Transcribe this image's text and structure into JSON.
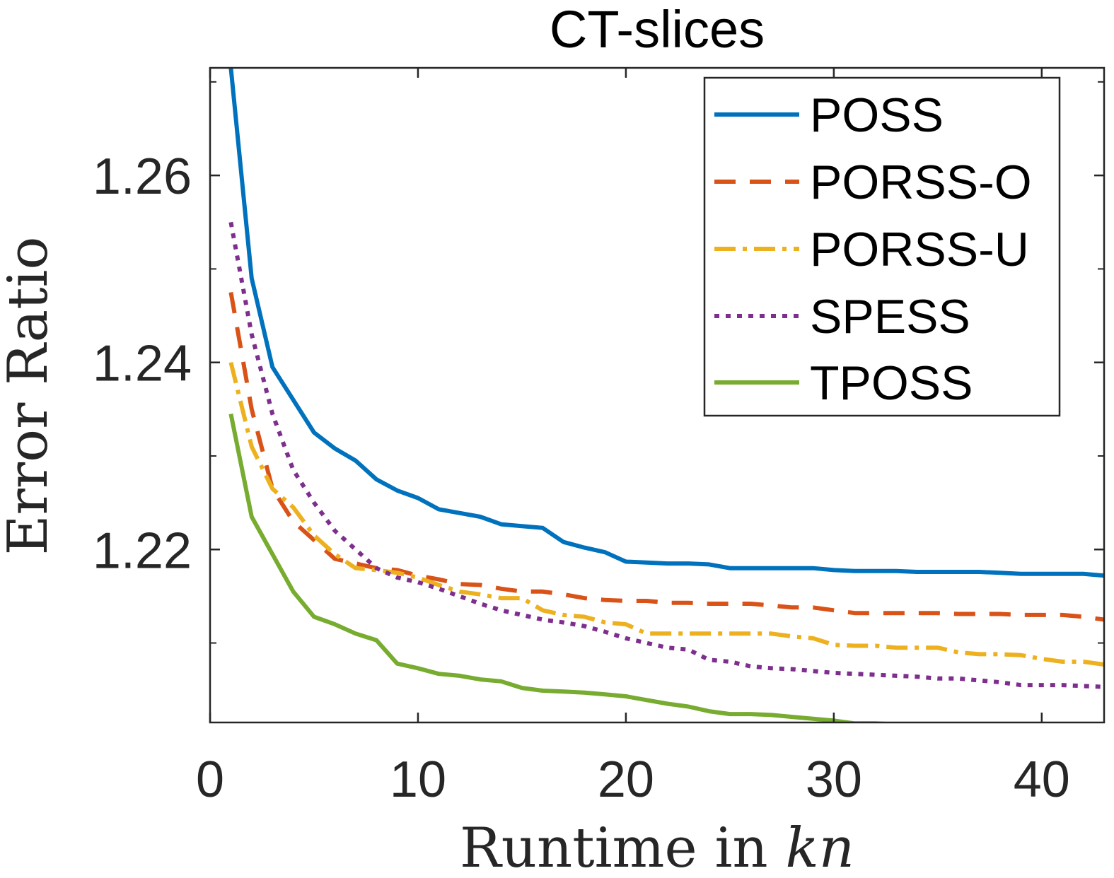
{
  "chart_data": {
    "type": "line",
    "title": "CT-slices",
    "xlabel_main": "Runtime in ",
    "xlabel_var": "kn",
    "ylabel": "Error Ratio",
    "xlim": [
      0,
      43
    ],
    "ylim": [
      1.2015,
      1.2715
    ],
    "xticks": [
      0,
      10,
      20,
      30,
      40
    ],
    "xtick_labels": [
      "0",
      "10",
      "20",
      "30",
      "40"
    ],
    "yticks": [
      1.22,
      1.24,
      1.26
    ],
    "ytick_labels": [
      "1.22",
      "1.24",
      "1.26"
    ],
    "legend_position": "top-right",
    "grid": false,
    "series": [
      {
        "name": "POSS",
        "color": "#0072BD",
        "style": "solid",
        "x": [
          1,
          2,
          3,
          4,
          5,
          6,
          7,
          8,
          9,
          10,
          11,
          12,
          13,
          14,
          15,
          16,
          17,
          18,
          19,
          20,
          21,
          22,
          23,
          24,
          25,
          26,
          27,
          28,
          29,
          30,
          31,
          32,
          33,
          34,
          35,
          36,
          37,
          38,
          39,
          40,
          41,
          42,
          43
        ],
        "y": [
          1.2715,
          1.249,
          1.2395,
          1.236,
          1.2325,
          1.2308,
          1.2295,
          1.2275,
          1.2263,
          1.2255,
          1.2243,
          1.2239,
          1.2235,
          1.2227,
          1.2225,
          1.2223,
          1.2208,
          1.2202,
          1.2197,
          1.2187,
          1.2186,
          1.2185,
          1.2185,
          1.2184,
          1.218,
          1.218,
          1.218,
          1.218,
          1.218,
          1.2178,
          1.2177,
          1.2177,
          1.2177,
          1.2176,
          1.2176,
          1.2176,
          1.2176,
          1.2175,
          1.2174,
          1.2174,
          1.2174,
          1.2174,
          1.2172
        ]
      },
      {
        "name": "PORSS-O",
        "color": "#D95319",
        "style": "dashed",
        "x": [
          1,
          2,
          3,
          4,
          5,
          6,
          7,
          8,
          9,
          10,
          11,
          12,
          13,
          14,
          15,
          16,
          17,
          18,
          19,
          20,
          21,
          22,
          23,
          24,
          25,
          26,
          27,
          28,
          29,
          30,
          31,
          32,
          33,
          34,
          35,
          36,
          37,
          38,
          39,
          40,
          41,
          42,
          43
        ],
        "y": [
          1.2475,
          1.235,
          1.2265,
          1.223,
          1.221,
          1.219,
          1.2185,
          1.218,
          1.2178,
          1.2172,
          1.2168,
          1.2163,
          1.2162,
          1.2158,
          1.2155,
          1.2155,
          1.2152,
          1.2148,
          1.2146,
          1.2145,
          1.2145,
          1.2143,
          1.2143,
          1.2142,
          1.2142,
          1.2142,
          1.214,
          1.2138,
          1.2138,
          1.2135,
          1.2132,
          1.2132,
          1.2132,
          1.2132,
          1.2132,
          1.2131,
          1.2131,
          1.2131,
          1.213,
          1.213,
          1.213,
          1.2128,
          1.2125
        ]
      },
      {
        "name": "PORSS-U",
        "color": "#EDB120",
        "style": "dashdot",
        "x": [
          1,
          2,
          3,
          4,
          5,
          6,
          7,
          8,
          9,
          10,
          11,
          12,
          13,
          14,
          15,
          16,
          17,
          18,
          19,
          20,
          21,
          22,
          23,
          24,
          25,
          26,
          27,
          28,
          29,
          30,
          31,
          32,
          33,
          34,
          35,
          36,
          37,
          38,
          39,
          40,
          41,
          42,
          43
        ],
        "y": [
          1.24,
          1.231,
          1.2265,
          1.2245,
          1.2215,
          1.2195,
          1.218,
          1.2178,
          1.2175,
          1.217,
          1.2162,
          1.2155,
          1.2152,
          1.2148,
          1.2148,
          1.2135,
          1.213,
          1.2128,
          1.2122,
          1.212,
          1.211,
          1.211,
          1.211,
          1.211,
          1.211,
          1.211,
          1.211,
          1.2107,
          1.2105,
          1.2098,
          1.2097,
          1.2097,
          1.2095,
          1.2095,
          1.2095,
          1.209,
          1.2088,
          1.2088,
          1.2087,
          1.2083,
          1.208,
          1.208,
          1.2077
        ]
      },
      {
        "name": "SPESS",
        "color": "#7E2F8E",
        "style": "dotted",
        "x": [
          1,
          2,
          3,
          4,
          5,
          6,
          7,
          8,
          9,
          10,
          11,
          12,
          13,
          14,
          15,
          16,
          17,
          18,
          19,
          20,
          21,
          22,
          23,
          24,
          25,
          26,
          27,
          28,
          29,
          30,
          31,
          32,
          33,
          34,
          35,
          36,
          37,
          38,
          39,
          40,
          41,
          42,
          43
        ],
        "y": [
          1.255,
          1.243,
          1.2345,
          1.2285,
          1.225,
          1.222,
          1.22,
          1.218,
          1.217,
          1.2165,
          1.2158,
          1.215,
          1.2142,
          1.2135,
          1.213,
          1.2125,
          1.2122,
          1.2118,
          1.2112,
          1.2105,
          1.21,
          1.2095,
          1.2093,
          1.2082,
          1.208,
          1.2075,
          1.2073,
          1.2072,
          1.207,
          1.2068,
          1.2067,
          1.2066,
          1.2065,
          1.2064,
          1.2062,
          1.2062,
          1.206,
          1.2058,
          1.2055,
          1.2055,
          1.2055,
          1.2054,
          1.2053
        ]
      },
      {
        "name": "TPOSS",
        "color": "#77AC30",
        "style": "solid",
        "x": [
          1,
          2,
          3,
          4,
          5,
          6,
          7,
          8,
          9,
          10,
          11,
          12,
          13,
          14,
          15,
          16,
          17,
          18,
          19,
          20,
          21,
          22,
          23,
          24,
          25,
          26,
          27,
          28,
          29,
          30,
          31,
          32,
          33,
          34,
          35,
          36,
          37,
          38,
          39,
          40,
          41,
          42,
          43
        ],
        "y": [
          1.2345,
          1.2235,
          1.2195,
          1.2155,
          1.2128,
          1.212,
          1.211,
          1.2103,
          1.2078,
          1.2073,
          1.2067,
          1.2065,
          1.2061,
          1.2059,
          1.2052,
          1.2049,
          1.2048,
          1.2047,
          1.2045,
          1.2043,
          1.2039,
          1.2035,
          1.2032,
          1.2027,
          1.2024,
          1.2024,
          1.2023,
          1.2021,
          1.2019,
          1.2017,
          1.2014,
          1.2014,
          1.2013,
          1.2012,
          1.2012,
          1.2012,
          1.2012,
          1.2008,
          1.2006,
          1.2005,
          1.2004,
          1.2003,
          1.2003
        ]
      }
    ]
  }
}
